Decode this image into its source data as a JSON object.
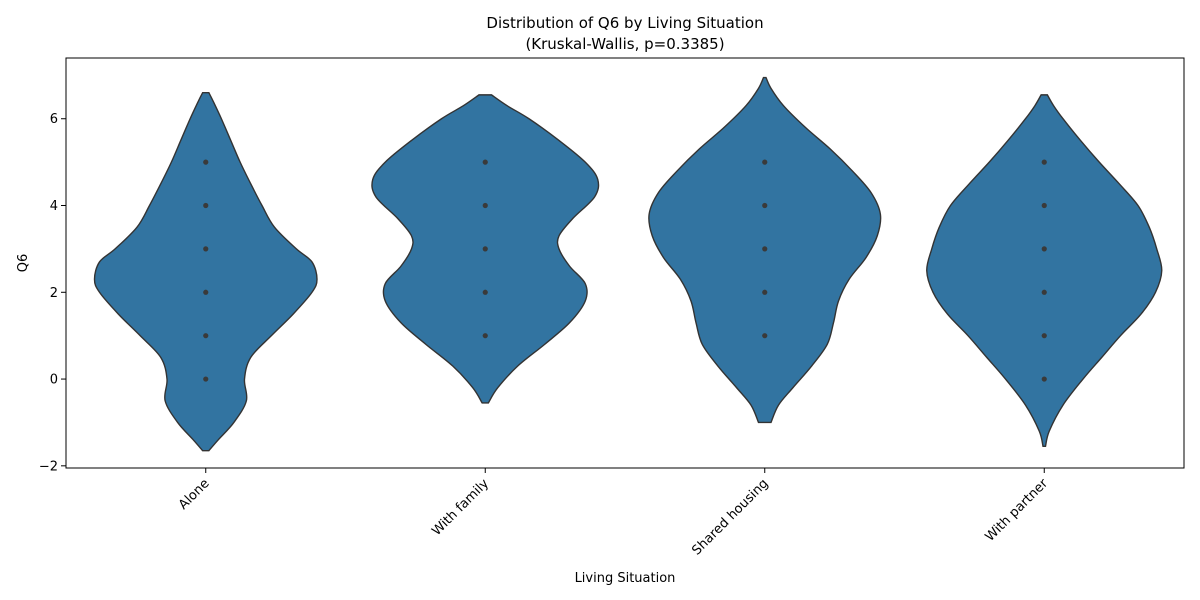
{
  "chart_data": {
    "type": "violin",
    "title": "Distribution of Q6 by Living Situation",
    "subtitle": "(Kruskal-Wallis, p=0.3385)",
    "xlabel": "Living Situation",
    "ylabel": "Q6",
    "ylim": [
      -2.05,
      7.4
    ],
    "yticks": [
      -2,
      0,
      2,
      4,
      6
    ],
    "grid": false,
    "colors": {
      "fill": "#3274a1",
      "edge": "#333333",
      "points": "#3a3a3a"
    },
    "categories": [
      "Alone",
      "With family",
      "Shared housing",
      "With partner"
    ],
    "violins": [
      {
        "category": "Alone",
        "y_min": -1.65,
        "y_max": 6.6,
        "profile": [
          [
            -1.65,
            0.05
          ],
          [
            -1.4,
            0.2
          ],
          [
            -1.0,
            0.45
          ],
          [
            -0.5,
            0.65
          ],
          [
            0.0,
            0.62
          ],
          [
            0.5,
            0.72
          ],
          [
            1.0,
            1.05
          ],
          [
            1.5,
            1.4
          ],
          [
            2.0,
            1.7
          ],
          [
            2.3,
            1.78
          ],
          [
            2.7,
            1.7
          ],
          [
            3.0,
            1.45
          ],
          [
            3.5,
            1.1
          ],
          [
            4.0,
            0.9
          ],
          [
            4.5,
            0.72
          ],
          [
            5.0,
            0.55
          ],
          [
            5.5,
            0.4
          ],
          [
            6.0,
            0.25
          ],
          [
            6.4,
            0.12
          ],
          [
            6.6,
            0.05
          ]
        ],
        "points": [
          0,
          1,
          2,
          3,
          4,
          5
        ]
      },
      {
        "category": "With family",
        "y_min": -0.55,
        "y_max": 6.55,
        "profile": [
          [
            -0.55,
            0.05
          ],
          [
            -0.2,
            0.2
          ],
          [
            0.3,
            0.52
          ],
          [
            0.8,
            0.95
          ],
          [
            1.3,
            1.35
          ],
          [
            1.8,
            1.6
          ],
          [
            2.2,
            1.6
          ],
          [
            2.6,
            1.35
          ],
          [
            3.0,
            1.18
          ],
          [
            3.3,
            1.18
          ],
          [
            3.7,
            1.4
          ],
          [
            4.2,
            1.75
          ],
          [
            4.6,
            1.8
          ],
          [
            5.0,
            1.6
          ],
          [
            5.5,
            1.18
          ],
          [
            6.0,
            0.7
          ],
          [
            6.3,
            0.35
          ],
          [
            6.55,
            0.1
          ]
        ],
        "points": [
          1,
          2,
          3,
          4,
          5
        ]
      },
      {
        "category": "Shared housing",
        "y_min": -1.0,
        "y_max": 6.95,
        "profile": [
          [
            -1.0,
            0.1
          ],
          [
            -0.6,
            0.22
          ],
          [
            -0.2,
            0.45
          ],
          [
            0.3,
            0.75
          ],
          [
            0.8,
            1.0
          ],
          [
            1.3,
            1.1
          ],
          [
            1.8,
            1.18
          ],
          [
            2.3,
            1.35
          ],
          [
            2.8,
            1.62
          ],
          [
            3.3,
            1.8
          ],
          [
            3.8,
            1.85
          ],
          [
            4.3,
            1.7
          ],
          [
            4.8,
            1.4
          ],
          [
            5.3,
            1.05
          ],
          [
            5.8,
            0.65
          ],
          [
            6.3,
            0.3
          ],
          [
            6.7,
            0.1
          ],
          [
            6.95,
            0.02
          ]
        ],
        "points": [
          1,
          2,
          3,
          4,
          5
        ]
      },
      {
        "category": "With partner",
        "y_min": -1.55,
        "y_max": 6.55,
        "profile": [
          [
            -1.55,
            0.02
          ],
          [
            -1.2,
            0.08
          ],
          [
            -0.6,
            0.3
          ],
          [
            0.0,
            0.62
          ],
          [
            0.5,
            0.92
          ],
          [
            1.0,
            1.22
          ],
          [
            1.5,
            1.55
          ],
          [
            2.0,
            1.78
          ],
          [
            2.5,
            1.88
          ],
          [
            3.0,
            1.8
          ],
          [
            3.5,
            1.68
          ],
          [
            4.0,
            1.5
          ],
          [
            4.5,
            1.2
          ],
          [
            5.0,
            0.88
          ],
          [
            5.5,
            0.58
          ],
          [
            6.0,
            0.3
          ],
          [
            6.3,
            0.15
          ],
          [
            6.55,
            0.05
          ]
        ],
        "points": [
          0,
          1,
          2,
          3,
          4,
          5
        ]
      }
    ]
  }
}
